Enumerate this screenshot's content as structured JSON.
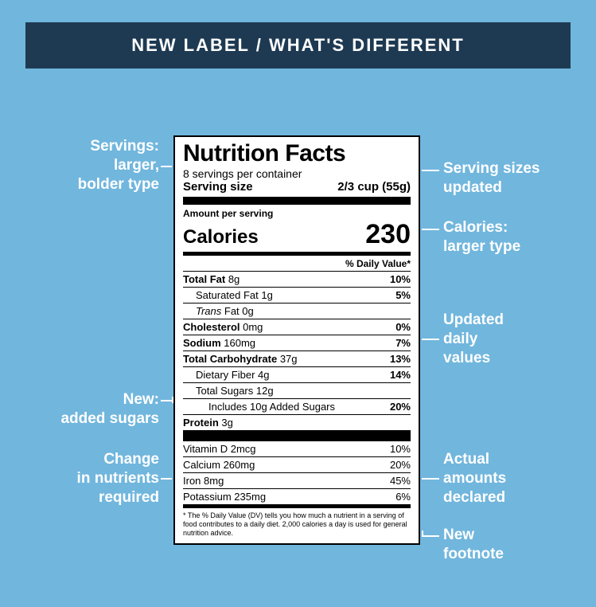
{
  "colors": {
    "page_bg": "#71b6dd",
    "header_bg": "#1e3a52",
    "header_text": "#ffffff",
    "label_bg": "#ffffff",
    "label_text": "#000000",
    "annotation_text": "#ffffff"
  },
  "header": {
    "title": "NEW LABEL / WHAT'S DIFFERENT"
  },
  "label": {
    "title": "Nutrition Facts",
    "servings_per_container": "8 servings per container",
    "serving_size_label": "Serving size",
    "serving_size_value": "2/3 cup (55g)",
    "amount_per_serving": "Amount per serving",
    "calories_label": "Calories",
    "calories_value": "230",
    "dv_header": "% Daily Value*",
    "rows": [
      {
        "name": "Total Fat",
        "amount": "8g",
        "dv": "10%",
        "bold": true,
        "indent": 0
      },
      {
        "name": "Saturated Fat",
        "amount": "1g",
        "dv": "5%",
        "bold": false,
        "indent": 1
      },
      {
        "name": "Trans Fat",
        "amount": "0g",
        "dv": "",
        "bold": false,
        "indent": 1,
        "italicName": true
      },
      {
        "name": "Cholesterol",
        "amount": "0mg",
        "dv": "0%",
        "bold": true,
        "indent": 0
      },
      {
        "name": "Sodium",
        "amount": "160mg",
        "dv": "7%",
        "bold": true,
        "indent": 0
      },
      {
        "name": "Total Carbohydrate",
        "amount": "37g",
        "dv": "13%",
        "bold": true,
        "indent": 0
      },
      {
        "name": "Dietary Fiber",
        "amount": "4g",
        "dv": "14%",
        "bold": false,
        "indent": 1
      },
      {
        "name": "Total Sugars",
        "amount": "12g",
        "dv": "",
        "bold": false,
        "indent": 1
      },
      {
        "name": "Includes 10g Added Sugars",
        "amount": "",
        "dv": "20%",
        "bold": false,
        "indent": 2
      },
      {
        "name": "Protein",
        "amount": "3g",
        "dv": "",
        "bold": true,
        "indent": 0
      }
    ],
    "vitamins": [
      {
        "name": "Vitamin D",
        "amount": "2mcg",
        "dv": "10%"
      },
      {
        "name": "Calcium",
        "amount": "260mg",
        "dv": "20%"
      },
      {
        "name": "Iron",
        "amount": "8mg",
        "dv": "45%"
      },
      {
        "name": "Potassium",
        "amount": "235mg",
        "dv": "6%"
      }
    ],
    "footnote": "* The % Daily Value (DV) tells you how much a nutrient in a serving of food contributes to a daily diet. 2,000 calories a day is used for general nutrition advice."
  },
  "annotations": {
    "left": [
      {
        "id": "servings-type",
        "line1": "Servings:",
        "line2": "larger,",
        "line3": "bolder type"
      },
      {
        "id": "added-sugars",
        "line1": "New:",
        "line2": "added sugars"
      },
      {
        "id": "nutrients-change",
        "line1": "Change",
        "line2": "in nutrients",
        "line3": "required"
      }
    ],
    "right": [
      {
        "id": "serving-sizes",
        "line1": "Serving sizes",
        "line2": "updated"
      },
      {
        "id": "calories-larger",
        "line1": "Calories:",
        "line2": "larger type"
      },
      {
        "id": "updated-dv",
        "line1": "Updated",
        "line2": "daily",
        "line3": "values"
      },
      {
        "id": "amounts-declared",
        "line1": "Actual",
        "line2": "amounts",
        "line3": "declared"
      },
      {
        "id": "new-footnote",
        "line1": "New",
        "line2": "footnote"
      }
    ]
  }
}
